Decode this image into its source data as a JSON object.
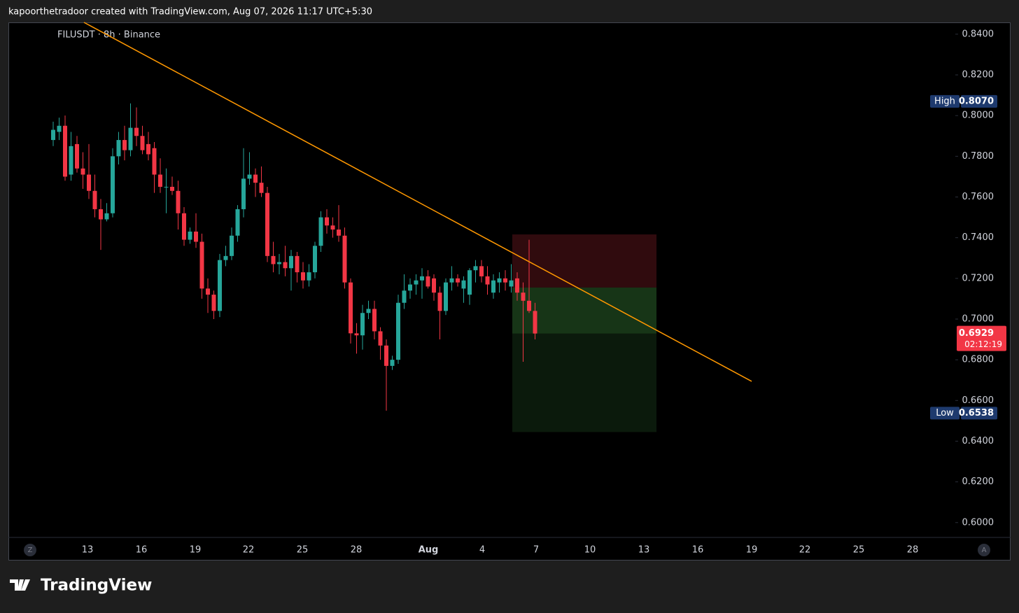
{
  "header": {
    "caption": "kapoorthetradoor created with TradingView.com, Aug 07, 2026 11:17 UTC+5:30"
  },
  "brand": "TradingView",
  "buttons": {
    "left": "Z",
    "right": "A"
  },
  "chart_data": {
    "type": "candlestick",
    "title": "FILUSDT · 8h · Binance",
    "up_color": "#26a69a",
    "down_color": "#f23645",
    "open": [
      0.788,
      0.792,
      0.795,
      0.771,
      0.786,
      0.774,
      0.771,
      0.763,
      0.754,
      0.749,
      0.752,
      0.78,
      0.788,
      0.783,
      0.794,
      0.79,
      0.786,
      0.784,
      0.771,
      0.765,
      0.765,
      0.763,
      0.752,
      0.739,
      0.743,
      0.738,
      0.715,
      0.712,
      0.704,
      0.729,
      0.731,
      0.741,
      0.754,
      0.769,
      0.771,
      0.767,
      0.762,
      0.731,
      0.727,
      0.728,
      0.725,
      0.731,
      0.723,
      0.719,
      0.723,
      0.736,
      0.75,
      0.746,
      0.744,
      0.741,
      0.718,
      0.693,
      0.692,
      0.703,
      0.705,
      0.694,
      0.687,
      0.677,
      0.68,
      0.708,
      0.714,
      0.717,
      0.719,
      0.721,
      0.72,
      0.713,
      0.704,
      0.718,
      0.72,
      0.715,
      0.712,
      0.724,
      0.726,
      0.721,
      0.713,
      0.718,
      0.72,
      0.716,
      0.72,
      0.713,
      0.709,
      0.704
    ],
    "high": [
      0.797,
      0.799,
      0.8,
      0.792,
      0.79,
      0.782,
      0.786,
      0.771,
      0.759,
      0.757,
      0.784,
      0.792,
      0.795,
      0.806,
      0.804,
      0.795,
      0.792,
      0.787,
      0.779,
      0.774,
      0.77,
      0.768,
      0.755,
      0.745,
      0.752,
      0.742,
      0.72,
      0.714,
      0.732,
      0.736,
      0.745,
      0.756,
      0.784,
      0.782,
      0.774,
      0.775,
      0.765,
      0.738,
      0.732,
      0.736,
      0.734,
      0.733,
      0.728,
      0.727,
      0.738,
      0.753,
      0.754,
      0.75,
      0.756,
      0.745,
      0.72,
      0.698,
      0.707,
      0.709,
      0.709,
      0.696,
      0.69,
      0.682,
      0.712,
      0.722,
      0.72,
      0.722,
      0.725,
      0.724,
      0.722,
      0.716,
      0.72,
      0.726,
      0.722,
      0.721,
      0.725,
      0.729,
      0.729,
      0.726,
      0.722,
      0.723,
      0.724,
      0.727,
      0.723,
      0.718,
      0.739,
      0.708
    ],
    "low": [
      0.785,
      0.788,
      0.768,
      0.768,
      0.772,
      0.764,
      0.759,
      0.75,
      0.734,
      0.748,
      0.75,
      0.776,
      0.778,
      0.78,
      0.785,
      0.781,
      0.778,
      0.762,
      0.762,
      0.752,
      0.761,
      0.744,
      0.736,
      0.737,
      0.735,
      0.71,
      0.703,
      0.7,
      0.701,
      0.726,
      0.729,
      0.738,
      0.75,
      0.766,
      0.76,
      0.76,
      0.728,
      0.723,
      0.722,
      0.721,
      0.714,
      0.718,
      0.715,
      0.716,
      0.72,
      0.733,
      0.742,
      0.74,
      0.738,
      0.715,
      0.688,
      0.683,
      0.685,
      0.7,
      0.69,
      0.68,
      0.655,
      0.675,
      0.678,
      0.705,
      0.71,
      0.712,
      0.71,
      0.715,
      0.709,
      0.69,
      0.702,
      0.714,
      0.716,
      0.708,
      0.707,
      0.718,
      0.718,
      0.712,
      0.71,
      0.713,
      0.714,
      0.713,
      0.709,
      0.679,
      0.703,
      0.69
    ],
    "close": [
      0.793,
      0.795,
      0.77,
      0.785,
      0.774,
      0.771,
      0.763,
      0.754,
      0.749,
      0.752,
      0.78,
      0.788,
      0.783,
      0.794,
      0.79,
      0.783,
      0.781,
      0.771,
      0.765,
      0.765,
      0.763,
      0.752,
      0.739,
      0.743,
      0.738,
      0.715,
      0.712,
      0.704,
      0.729,
      0.731,
      0.741,
      0.754,
      0.769,
      0.771,
      0.767,
      0.762,
      0.731,
      0.727,
      0.728,
      0.725,
      0.731,
      0.723,
      0.719,
      0.723,
      0.736,
      0.75,
      0.746,
      0.744,
      0.741,
      0.718,
      0.693,
      0.692,
      0.703,
      0.705,
      0.694,
      0.687,
      0.677,
      0.68,
      0.708,
      0.714,
      0.717,
      0.719,
      0.721,
      0.716,
      0.713,
      0.704,
      0.718,
      0.72,
      0.718,
      0.719,
      0.724,
      0.726,
      0.721,
      0.717,
      0.719,
      0.72,
      0.718,
      0.719,
      0.713,
      0.709,
      0.704,
      0.6929
    ],
    "ylim": [
      0.5927,
      0.8458
    ],
    "yticks": [
      {
        "value": 0.84,
        "label": "0.8400"
      },
      {
        "value": 0.82,
        "label": "0.8200"
      },
      {
        "value": 0.8,
        "label": "0.8000"
      },
      {
        "value": 0.78,
        "label": "0.7800"
      },
      {
        "value": 0.76,
        "label": "0.7600"
      },
      {
        "value": 0.74,
        "label": "0.7400"
      },
      {
        "value": 0.72,
        "label": "0.7200"
      },
      {
        "value": 0.7,
        "label": "0.7000"
      },
      {
        "value": 0.68,
        "label": "0.6800"
      },
      {
        "value": 0.66,
        "label": "0.6600"
      },
      {
        "value": 0.64,
        "label": "0.6400"
      },
      {
        "value": 0.62,
        "label": "0.6200"
      },
      {
        "value": 0.6,
        "label": "0.6000"
      }
    ],
    "x_labels": [
      "13",
      "16",
      "19",
      "22",
      "25",
      "28",
      "Aug",
      "4",
      "7",
      "10",
      "13",
      "16",
      "19",
      "22",
      "25",
      "28"
    ],
    "high_label": "High",
    "high_value": {
      "value": 0.807,
      "label": "0.8070"
    },
    "low_label": "Low",
    "low_value": {
      "value": 0.6538,
      "label": "0.6538"
    },
    "last_price": {
      "value": 0.6929,
      "label": "0.6929"
    },
    "countdown": "02:12:19",
    "trendline": [
      0.8458,
      0.6694
    ],
    "position": {
      "stop": 0.7416,
      "entry": 0.7155,
      "target": 0.6445
    }
  }
}
